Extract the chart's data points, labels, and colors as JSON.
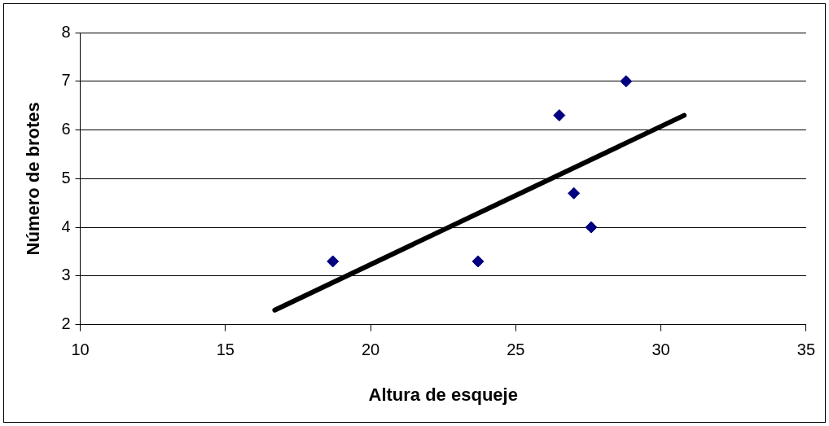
{
  "chart_data": {
    "type": "scatter",
    "xlabel": "Altura de esqueje",
    "ylabel": "Número de brotes",
    "xlim": [
      10,
      35
    ],
    "xticks": [
      10,
      15,
      20,
      25,
      30,
      35
    ],
    "ylim": [
      2,
      8
    ],
    "yticks": [
      2,
      3,
      4,
      5,
      6,
      7,
      8
    ],
    "grid": "y",
    "legend": false,
    "series": [
      {
        "type": "scatter",
        "color": "#000080",
        "marker": "diamond",
        "x": [
          18.7,
          23.7,
          26.5,
          27,
          27.6,
          28.8
        ],
        "values": [
          3.3,
          3.3,
          6.3,
          4.7,
          4,
          7
        ]
      },
      {
        "type": "line",
        "color": "#000000",
        "marker": "none",
        "line_style": "solid",
        "x": [
          16.7,
          30.8
        ],
        "values": [
          2.3,
          6.3
        ]
      }
    ]
  }
}
